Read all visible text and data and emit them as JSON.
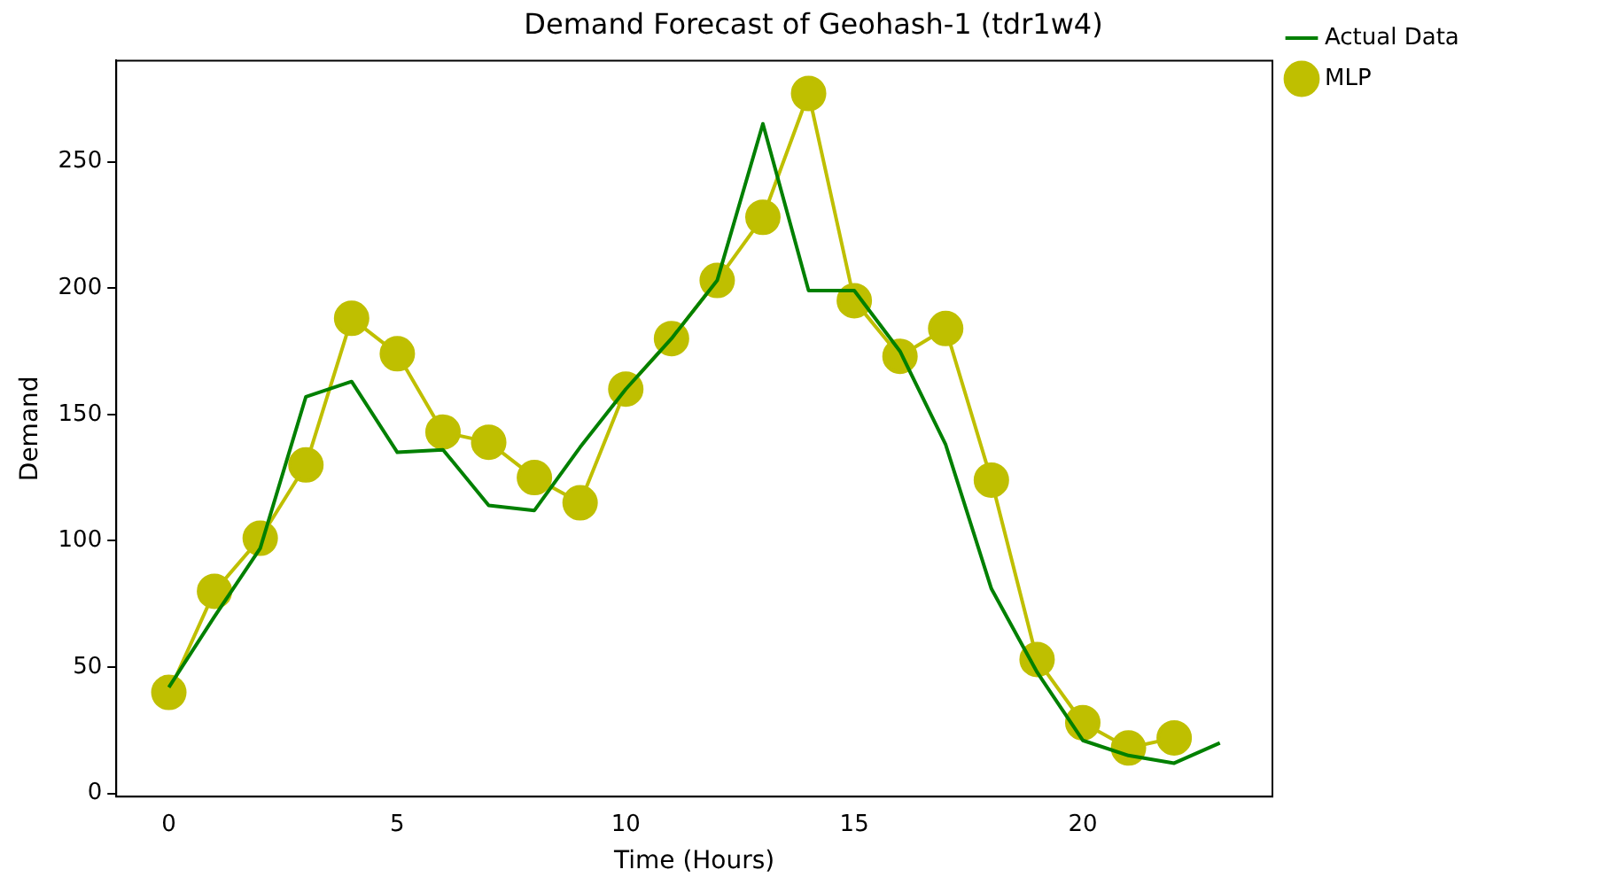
{
  "chart_data": {
    "type": "line",
    "title": "Demand Forecast of Geohash-1 (tdr1w4)",
    "xlabel": "Time (Hours)",
    "ylabel": "Demand",
    "xlim": [
      -1.15,
      24.15
    ],
    "xticks": [
      0,
      5,
      10,
      15,
      20
    ],
    "ylim": [
      -1.25,
      290
    ],
    "yticks": [
      0,
      50,
      100,
      150,
      200,
      250
    ],
    "grid": false,
    "legend": "top right",
    "series": [
      {
        "name": "Actual Data",
        "color": "#008000",
        "marker": "none",
        "x": [
          0,
          1,
          2,
          3,
          4,
          5,
          6,
          7,
          8,
          9,
          10,
          11,
          12,
          13,
          14,
          15,
          16,
          17,
          18,
          19,
          20,
          21,
          22,
          23
        ],
        "values": [
          42,
          70,
          97,
          157,
          163,
          135,
          136,
          114,
          112,
          137,
          160,
          180,
          203,
          265,
          199,
          199,
          175,
          138,
          81,
          48,
          21,
          15,
          12,
          20
        ]
      },
      {
        "name": "MLP",
        "color": "#bfbf00",
        "marker": "circle",
        "x": [
          0,
          1,
          2,
          3,
          4,
          5,
          6,
          7,
          8,
          9,
          10,
          11,
          12,
          13,
          14,
          15,
          16,
          17,
          18,
          19,
          20,
          21,
          22
        ],
        "values": [
          40,
          80,
          101,
          130,
          188,
          174,
          143,
          139,
          125,
          115,
          160,
          180,
          203,
          228,
          277,
          195,
          173,
          184,
          124,
          53,
          28,
          18,
          22
        ]
      }
    ]
  }
}
